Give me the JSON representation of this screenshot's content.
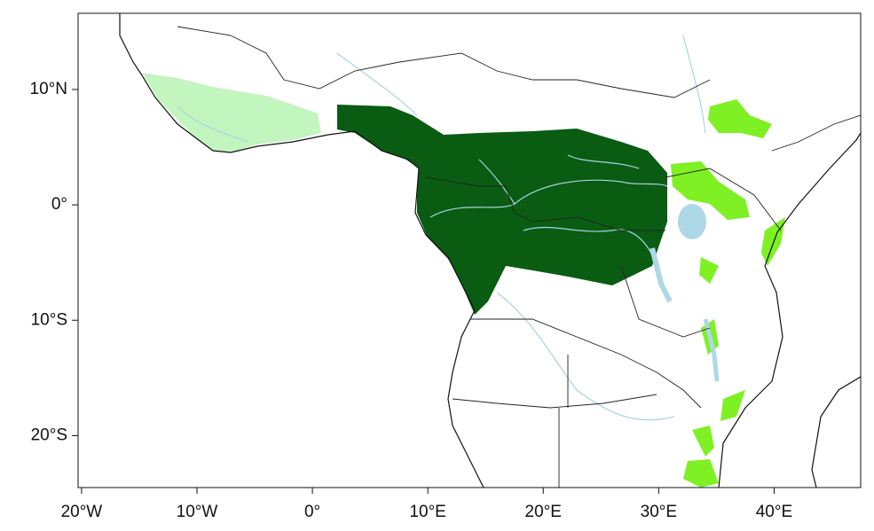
{
  "chart_data": {
    "type": "map",
    "xlim": [
      -20.3,
      47.5
    ],
    "ylim": [
      -24.5,
      16.6
    ],
    "xticks": [
      {
        "value": -20,
        "label": "20°W"
      },
      {
        "value": -10,
        "label": "10°W"
      },
      {
        "value": 0,
        "label": "0°"
      },
      {
        "value": 10,
        "label": "10°E"
      },
      {
        "value": 20,
        "label": "20°E"
      },
      {
        "value": 30,
        "label": "30°E"
      },
      {
        "value": 40,
        "label": "40°E"
      }
    ],
    "yticks": [
      {
        "value": 10,
        "label": "10°N"
      },
      {
        "value": 0,
        "label": "0°"
      },
      {
        "value": -10,
        "label": "10°S"
      },
      {
        "value": -20,
        "label": "20°S"
      }
    ]
  }
}
